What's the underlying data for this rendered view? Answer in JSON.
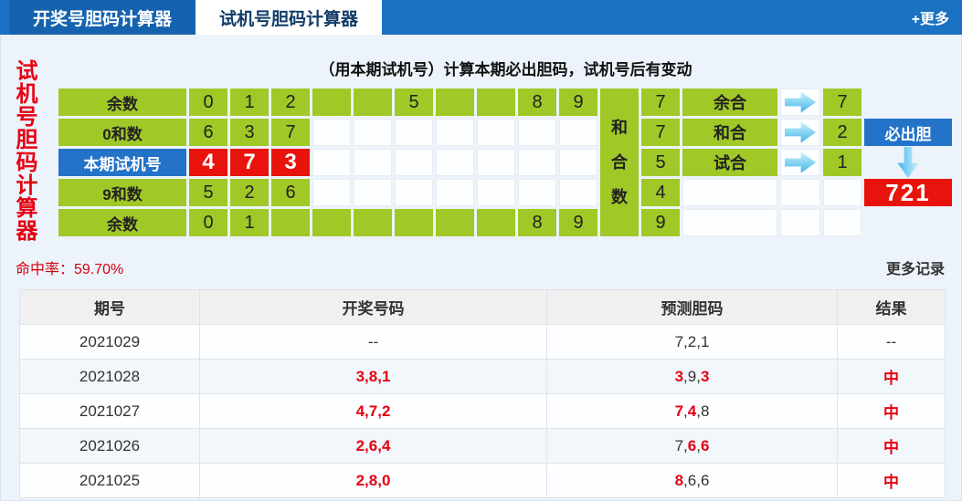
{
  "colors": {
    "bar_blue": "#1b71c2",
    "tab_dark_blue": "#1563ae",
    "cell_green": "#a0c827",
    "cell_red": "#e8130c",
    "cell_blue": "#2373c8",
    "red_text": "#e60012",
    "hit_rate_red": "#d7000f"
  },
  "tabs": {
    "items": [
      {
        "label": "开奖号胆码计算器",
        "active": false
      },
      {
        "label": "试机号胆码计算器",
        "active": true
      }
    ],
    "more_label": "+更多"
  },
  "side_title": "试机号胆码计算器",
  "calc": {
    "heading": "（用本期试机号）计算本期必出胆码，试机号后有变动",
    "row_labels": [
      "余数",
      "0和数",
      "本期试机号",
      "9和数",
      "余数"
    ],
    "digit_rows": [
      {
        "type": "all",
        "cells": [
          "0",
          "1",
          "2",
          "",
          "",
          "5",
          "",
          "",
          "8",
          "9"
        ]
      },
      {
        "type": "first3",
        "color": "green",
        "cells": [
          "6",
          "3",
          "7"
        ]
      },
      {
        "type": "first3",
        "color": "red",
        "cells": [
          "4",
          "7",
          "3"
        ]
      },
      {
        "type": "first3",
        "color": "green",
        "cells": [
          "5",
          "2",
          "6"
        ]
      },
      {
        "type": "all",
        "cells": [
          "0",
          "1",
          "",
          "",
          "",
          "",
          "",
          "",
          "8",
          "9"
        ]
      }
    ],
    "hehe_label": "和\n合\n数",
    "sum_values": [
      "7",
      "7",
      "5",
      "4",
      "9"
    ],
    "combos": [
      {
        "label": "余合",
        "value": "7"
      },
      {
        "label": "和合",
        "value": "2"
      },
      {
        "label": "试合",
        "value": "1"
      }
    ],
    "must_button": "必出胆",
    "result": "721"
  },
  "stats": {
    "hit_rate_label": "命中率：",
    "hit_rate_value": "59.70%",
    "more_records": "更多记录"
  },
  "table": {
    "headers": [
      "期号",
      "开奖号码",
      "预测胆码",
      "结果"
    ],
    "rows": [
      {
        "issue": "2021029",
        "win": "--",
        "win_red": false,
        "pred": [
          [
            "7",
            false
          ],
          [
            "2",
            false
          ],
          [
            "1",
            false
          ]
        ],
        "result": "--",
        "result_red": false
      },
      {
        "issue": "2021028",
        "win": "3,8,1",
        "win_red": true,
        "pred": [
          [
            "3",
            true
          ],
          [
            "9",
            false
          ],
          [
            "3",
            true
          ]
        ],
        "result": "中",
        "result_red": true
      },
      {
        "issue": "2021027",
        "win": "4,7,2",
        "win_red": true,
        "pred": [
          [
            "7",
            true
          ],
          [
            "4",
            true
          ],
          [
            "8",
            false
          ]
        ],
        "result": "中",
        "result_red": true
      },
      {
        "issue": "2021026",
        "win": "2,6,4",
        "win_red": true,
        "pred": [
          [
            "7",
            false
          ],
          [
            "6",
            true
          ],
          [
            "6",
            true
          ]
        ],
        "result": "中",
        "result_red": true
      },
      {
        "issue": "2021025",
        "win": "2,8,0",
        "win_red": true,
        "pred": [
          [
            "8",
            true
          ],
          [
            "6",
            false
          ],
          [
            "6",
            false
          ]
        ],
        "result": "中",
        "result_red": true
      }
    ]
  }
}
